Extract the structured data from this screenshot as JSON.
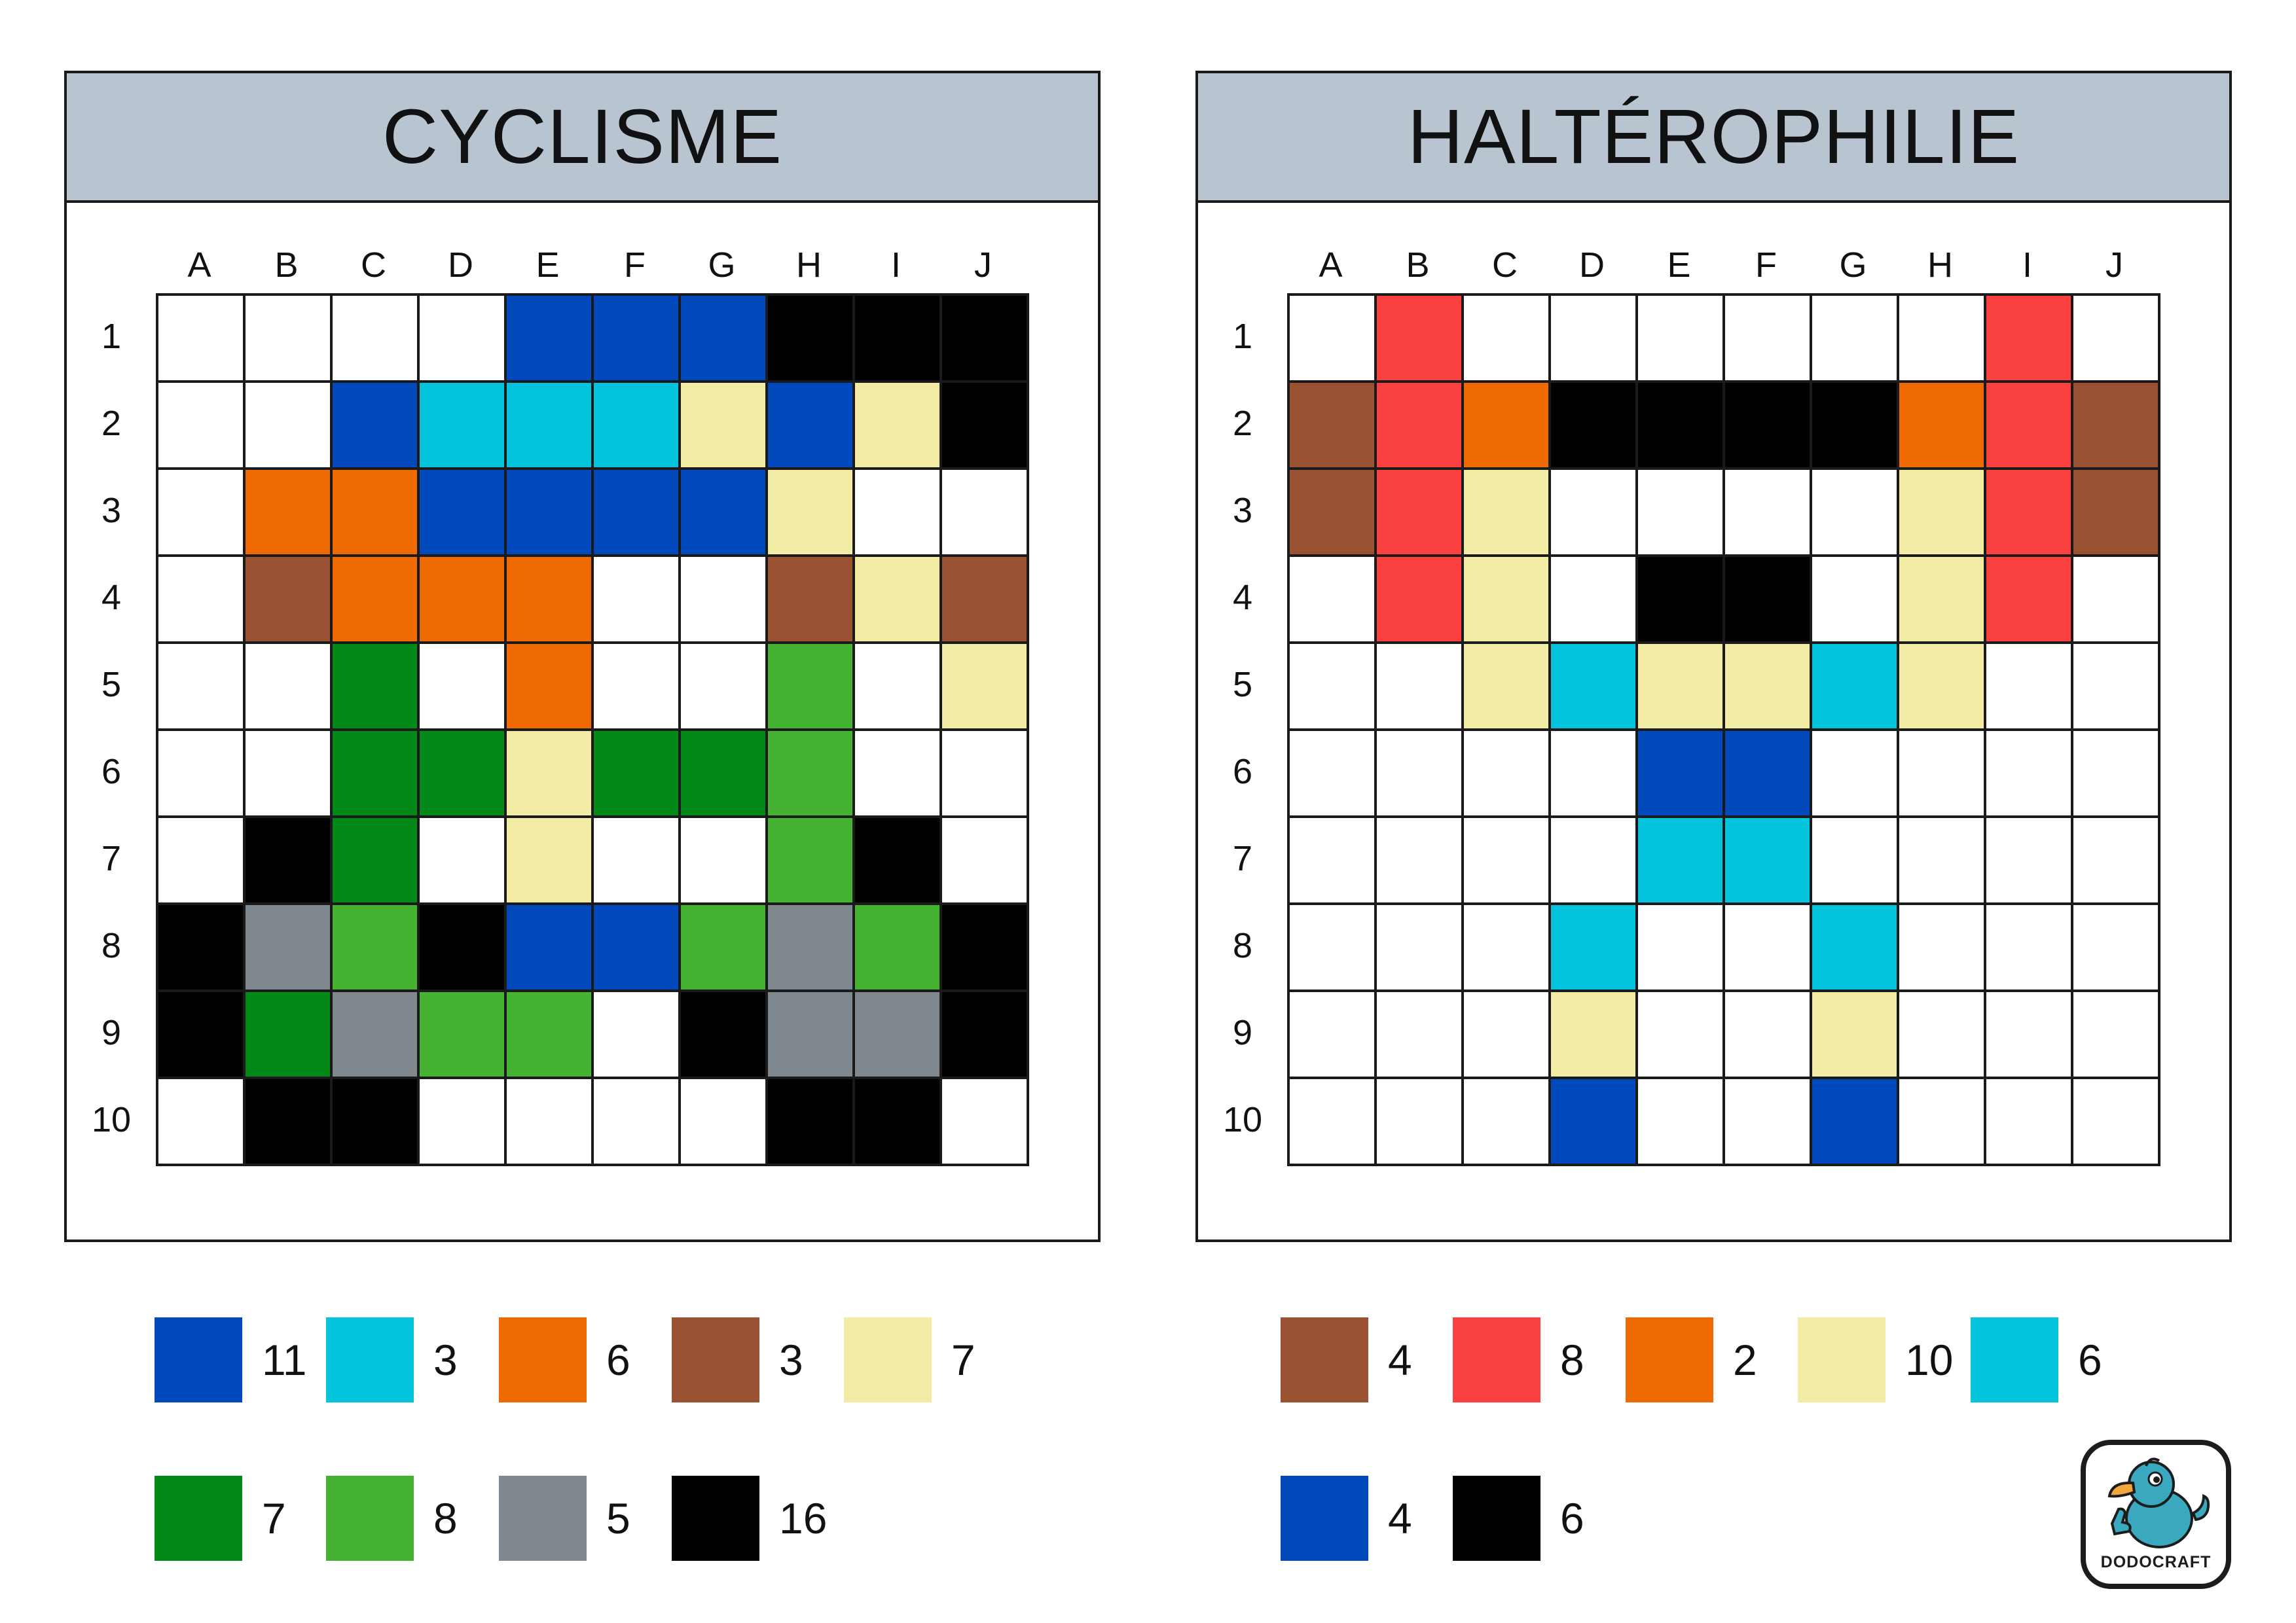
{
  "panels": [
    {
      "title": "CYCLISME",
      "columns": [
        "A",
        "B",
        "C",
        "D",
        "E",
        "F",
        "G",
        "H",
        "I",
        "J"
      ],
      "rows": [
        "1",
        "2",
        "3",
        "4",
        "5",
        "6",
        "7",
        "8",
        "9",
        "10"
      ],
      "grid": [
        [
          "W",
          "W",
          "W",
          "W",
          "B",
          "B",
          "B",
          "K",
          "K",
          "K"
        ],
        [
          "W",
          "W",
          "B",
          "C",
          "C",
          "C",
          "Y",
          "B",
          "Y",
          "K"
        ],
        [
          "W",
          "O",
          "O",
          "B",
          "B",
          "B",
          "B",
          "Y",
          "W",
          "W"
        ],
        [
          "W",
          "N",
          "O",
          "O",
          "O",
          "W",
          "W",
          "N",
          "Y",
          "N"
        ],
        [
          "W",
          "W",
          "G",
          "W",
          "O",
          "W",
          "W",
          "L",
          "W",
          "Y"
        ],
        [
          "W",
          "W",
          "G",
          "G",
          "Y",
          "G",
          "G",
          "L",
          "W",
          "W"
        ],
        [
          "W",
          "K",
          "G",
          "W",
          "Y",
          "W",
          "W",
          "L",
          "K",
          "W"
        ],
        [
          "K",
          "S",
          "L",
          "K",
          "B",
          "B",
          "L",
          "S",
          "L",
          "K"
        ],
        [
          "K",
          "G",
          "S",
          "L",
          "L",
          "W",
          "K",
          "S",
          "S",
          "K"
        ],
        [
          "W",
          "K",
          "K",
          "W",
          "W",
          "W",
          "W",
          "K",
          "K",
          "W"
        ]
      ],
      "legend": [
        {
          "color": "B",
          "count": "11"
        },
        {
          "color": "C",
          "count": "3"
        },
        {
          "color": "O",
          "count": "6"
        },
        {
          "color": "N",
          "count": "3"
        },
        {
          "color": "Y",
          "count": "7"
        },
        {
          "color": "G",
          "count": "7"
        },
        {
          "color": "L",
          "count": "8"
        },
        {
          "color": "S",
          "count": "5"
        },
        {
          "color": "K",
          "count": "16"
        }
      ]
    },
    {
      "title": "HALTÉROPHILIE",
      "columns": [
        "A",
        "B",
        "C",
        "D",
        "E",
        "F",
        "G",
        "H",
        "I",
        "J"
      ],
      "rows": [
        "1",
        "2",
        "3",
        "4",
        "5",
        "6",
        "7",
        "8",
        "9",
        "10"
      ],
      "grid": [
        [
          "W",
          "R",
          "W",
          "W",
          "W",
          "W",
          "W",
          "W",
          "R",
          "W"
        ],
        [
          "N",
          "R",
          "O",
          "K",
          "K",
          "K",
          "K",
          "O",
          "R",
          "N"
        ],
        [
          "N",
          "R",
          "Y",
          "W",
          "W",
          "W",
          "W",
          "Y",
          "R",
          "N"
        ],
        [
          "W",
          "R",
          "Y",
          "W",
          "K",
          "K",
          "W",
          "Y",
          "R",
          "W"
        ],
        [
          "W",
          "W",
          "Y",
          "C",
          "Y",
          "Y",
          "C",
          "Y",
          "W",
          "W"
        ],
        [
          "W",
          "W",
          "W",
          "W",
          "B",
          "B",
          "W",
          "W",
          "W",
          "W"
        ],
        [
          "W",
          "W",
          "W",
          "W",
          "C",
          "C",
          "W",
          "W",
          "W",
          "W"
        ],
        [
          "W",
          "W",
          "W",
          "C",
          "W",
          "W",
          "C",
          "W",
          "W",
          "W"
        ],
        [
          "W",
          "W",
          "W",
          "Y",
          "W",
          "W",
          "Y",
          "W",
          "W",
          "W"
        ],
        [
          "W",
          "W",
          "W",
          "B",
          "W",
          "W",
          "B",
          "W",
          "W",
          "W"
        ]
      ],
      "legend": [
        {
          "color": "N",
          "count": "4"
        },
        {
          "color": "R",
          "count": "8"
        },
        {
          "color": "O",
          "count": "2"
        },
        {
          "color": "Y",
          "count": "10"
        },
        {
          "color": "C",
          "count": "6"
        },
        {
          "color": "B",
          "count": "4"
        },
        {
          "color": "K",
          "count": "6"
        }
      ]
    }
  ],
  "colors": {
    "W": "#ffffff",
    "B": "#0349be",
    "C": "#04c3dd",
    "O": "#ef6a03",
    "N": "#9b5232",
    "Y": "#f1eba3",
    "G": "#038918",
    "L": "#46b231",
    "S": "#7f888f",
    "K": "#000000",
    "R": "#fb4140"
  },
  "logo": {
    "text": "DODOCRAFT",
    "icon": "dodo-bird-thumbs-up-icon",
    "bird_color": "#3aa9c0"
  }
}
